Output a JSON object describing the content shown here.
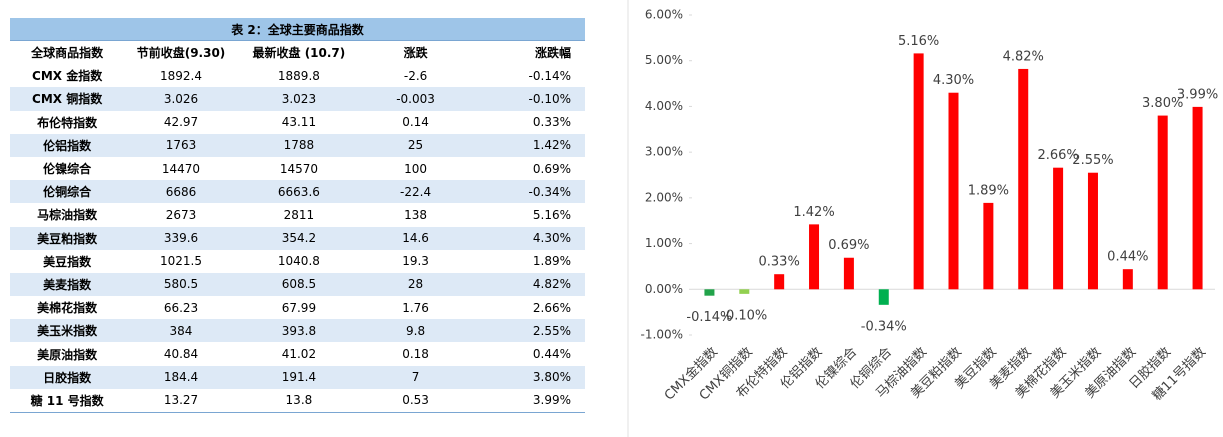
{
  "table": {
    "title": "表 2：全球主要商品指数",
    "header": [
      "全球商品指数",
      "节前收盘(9.30)",
      "最新收盘 (10.7)",
      "涨跌",
      "涨跌幅"
    ],
    "rows": [
      [
        "CMX 金指数",
        "1892.4",
        "1889.8",
        "-2.6",
        "-0.14%"
      ],
      [
        "CMX 铜指数",
        "3.026",
        "3.023",
        "-0.003",
        "-0.10%"
      ],
      [
        "布伦特指数",
        "42.97",
        "43.11",
        "0.14",
        "0.33%"
      ],
      [
        "伦铝指数",
        "1763",
        "1788",
        "25",
        "1.42%"
      ],
      [
        "伦镍综合",
        "14470",
        "14570",
        "100",
        "0.69%"
      ],
      [
        "伦铜综合",
        "6686",
        "6663.6",
        "-22.4",
        "-0.34%"
      ],
      [
        "马棕油指数",
        "2673",
        "2811",
        "138",
        "5.16%"
      ],
      [
        "美豆粕指数",
        "339.6",
        "354.2",
        "14.6",
        "4.30%"
      ],
      [
        "美豆指数",
        "1021.5",
        "1040.8",
        "19.3",
        "1.89%"
      ],
      [
        "美麦指数",
        "580.5",
        "608.5",
        "28",
        "4.82%"
      ],
      [
        "美棉花指数",
        "66.23",
        "67.99",
        "1.76",
        "2.66%"
      ],
      [
        "美玉米指数",
        "384",
        "393.8",
        "9.8",
        "2.55%"
      ],
      [
        "美原油指数",
        "40.84",
        "41.02",
        "0.18",
        "0.44%"
      ],
      [
        "日胶指数",
        "184.4",
        "191.4",
        "7",
        "3.80%"
      ],
      [
        "糖 11 号指数",
        "13.27",
        "13.8",
        "0.53",
        "3.99%"
      ]
    ]
  },
  "chart_data": {
    "type": "bar",
    "categories": [
      "CMX金指数",
      "CMX铜指数",
      "布伦特指数",
      "伦铝指数",
      "伦镍综合",
      "伦铜综合",
      "马棕油指数",
      "美豆粕指数",
      "美豆指数",
      "美麦指数",
      "美棉花指数",
      "美玉米指数",
      "美原油指数",
      "日胶指数",
      "糖11号指数"
    ],
    "values": [
      -0.14,
      -0.1,
      0.33,
      1.42,
      0.69,
      -0.34,
      5.16,
      4.3,
      1.89,
      4.82,
      2.66,
      2.55,
      0.44,
      3.8,
      3.99
    ],
    "value_labels": [
      "-0.14%",
      "-0.10%",
      "0.33%",
      "1.42%",
      "0.69%",
      "-0.34%",
      "5.16%",
      "4.30%",
      "1.89%",
      "4.82%",
      "2.66%",
      "2.55%",
      "0.44%",
      "3.80%",
      "3.99%"
    ],
    "colors": [
      "#22a34a",
      "#92d050",
      "#ff0000",
      "#ff0000",
      "#ff0000",
      "#00b050",
      "#ff0000",
      "#ff0000",
      "#ff0000",
      "#ff0000",
      "#ff0000",
      "#ff0000",
      "#ff0000",
      "#ff0000",
      "#ff0000"
    ],
    "ylim": [
      -1,
      6
    ],
    "yticks": [
      {
        "value": -1,
        "label": "-1.00%"
      },
      {
        "value": 0,
        "label": "0.00%"
      },
      {
        "value": 1,
        "label": "1.00%"
      },
      {
        "value": 2,
        "label": "2.00%"
      },
      {
        "value": 3,
        "label": "3.00%"
      },
      {
        "value": 4,
        "label": "4.00%"
      },
      {
        "value": 5,
        "label": "5.00%"
      },
      {
        "value": 6,
        "label": "6.00%"
      }
    ]
  }
}
